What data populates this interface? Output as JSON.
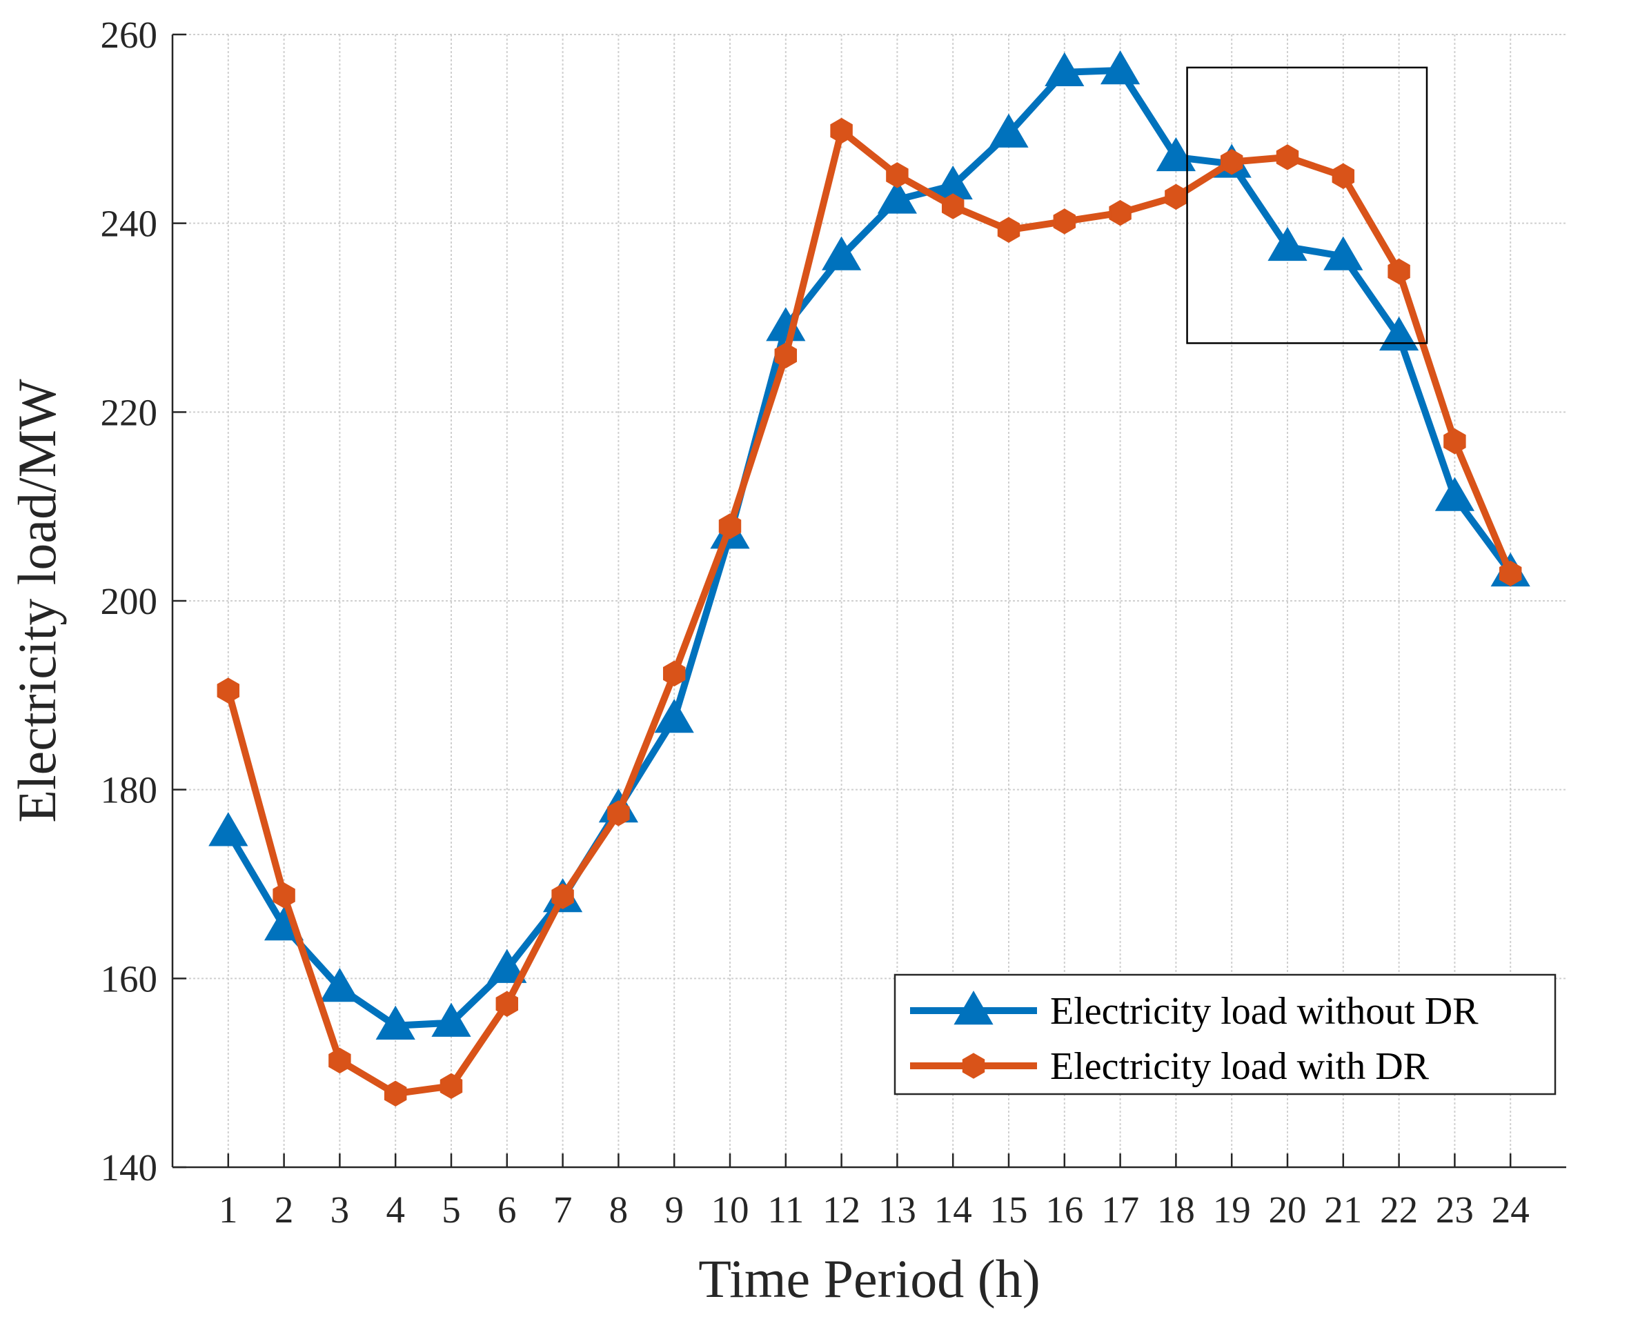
{
  "chart_data": {
    "type": "line",
    "xlabel": "Time Period (h)",
    "ylabel": "Electricity load/MW",
    "ylim": [
      140,
      260
    ],
    "yticks": [
      140,
      160,
      180,
      200,
      220,
      240,
      260
    ],
    "x": [
      1,
      2,
      3,
      4,
      5,
      6,
      7,
      8,
      9,
      10,
      11,
      12,
      13,
      14,
      15,
      16,
      17,
      18,
      19,
      20,
      21,
      22,
      23,
      24
    ],
    "grid": true,
    "legend_position": "bottom-right",
    "series": [
      {
        "name": "Electricity load without DR",
        "color": "#0072BD",
        "marker": "triangle",
        "values": [
          175.5,
          165.5,
          159,
          155,
          155.3,
          161,
          168.5,
          178,
          187.5,
          207,
          229,
          236.5,
          242.5,
          244,
          249.5,
          256,
          256.2,
          247,
          246.3,
          237.5,
          236.5,
          228,
          211,
          203
        ]
      },
      {
        "name": "Electricity load with DR",
        "color": "#D95319",
        "marker": "hexagram",
        "values": [
          190.5,
          168.8,
          151.3,
          147.8,
          148.6,
          157.3,
          168.7,
          177.5,
          192.3,
          207.9,
          226,
          249.8,
          245.1,
          241.8,
          239.3,
          240.2,
          241.1,
          242.8,
          246.5,
          247,
          245,
          234.9,
          216.9,
          202.9
        ]
      }
    ],
    "annotations": [
      {
        "type": "rectangle",
        "x_range": [
          18.2,
          22.5
        ],
        "y_range": [
          227.3,
          256.5
        ]
      }
    ]
  }
}
